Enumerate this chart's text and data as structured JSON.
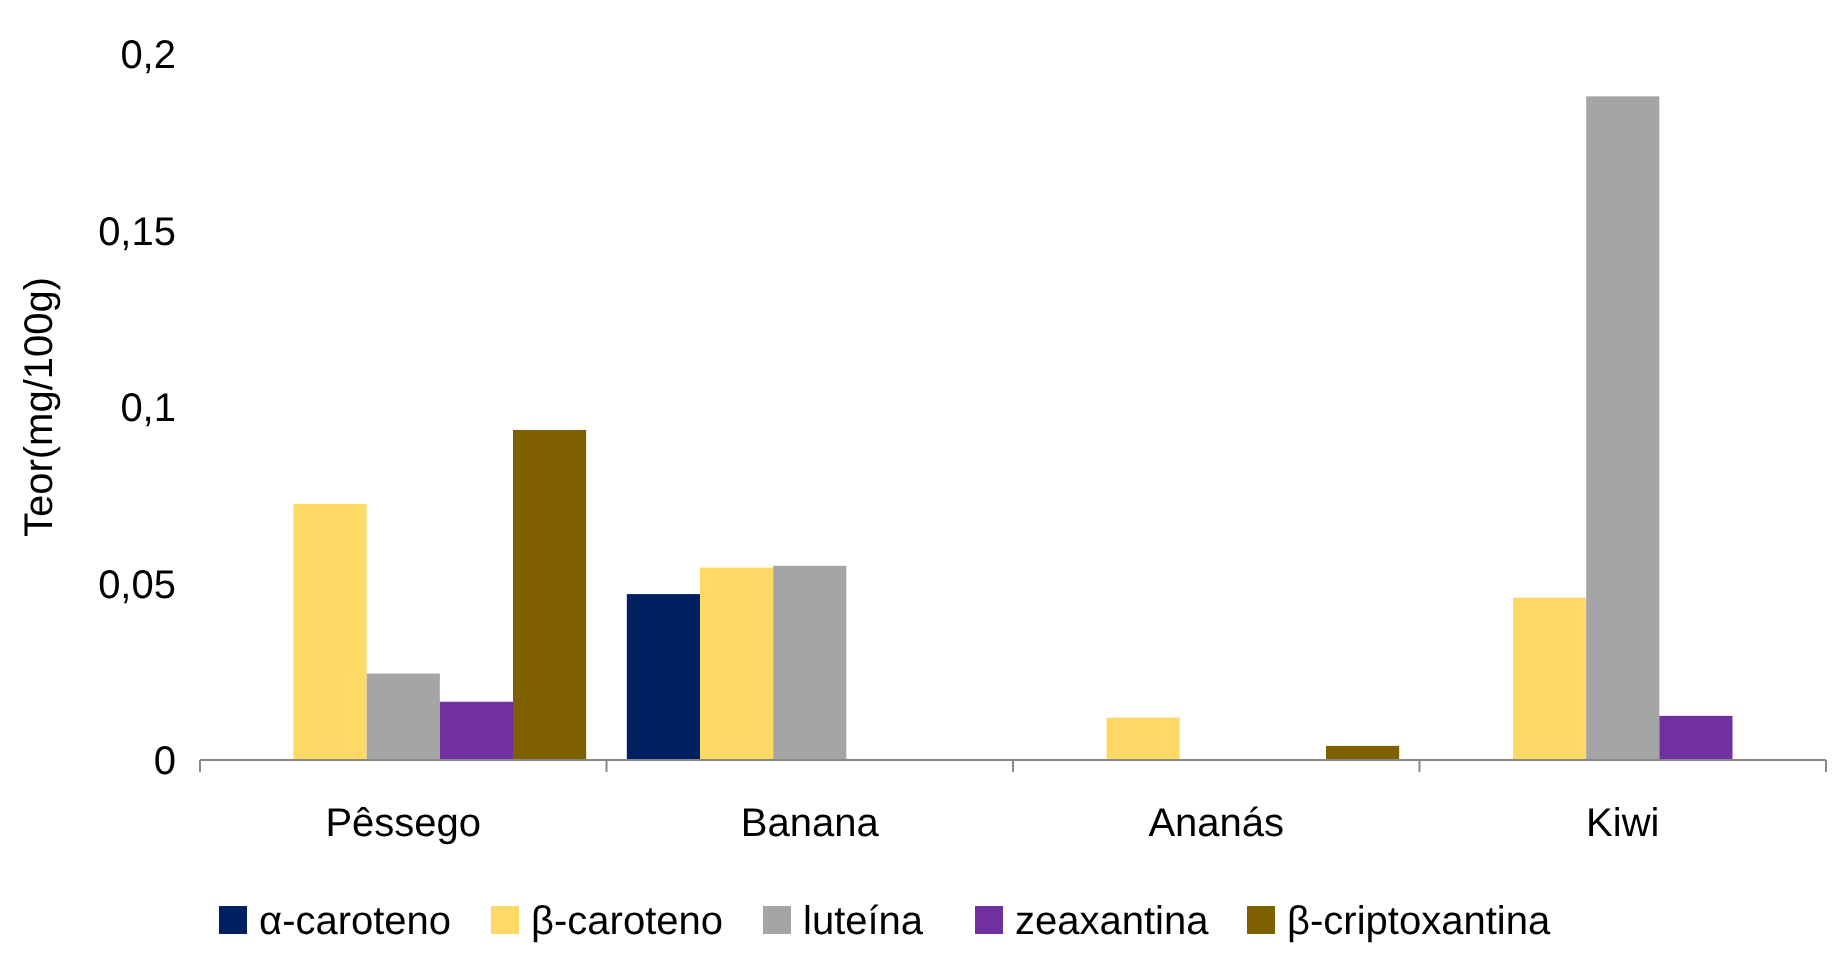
{
  "chart_data": {
    "type": "bar",
    "ylabel": "Teor(mg/100g)",
    "categories": [
      "Pêssego",
      "Banana",
      "Ananás",
      "Kiwi"
    ],
    "series": [
      {
        "name": "α-caroteno",
        "color": "#002060",
        "values": [
          null,
          0.047,
          null,
          null
        ]
      },
      {
        "name": "β-caroteno",
        "color": "#ffd966",
        "values": [
          0.0725,
          0.0545,
          0.012,
          0.046
        ]
      },
      {
        "name": "luteína",
        "color": "#a5a5a5",
        "values": [
          0.0245,
          0.055,
          null,
          0.188
        ]
      },
      {
        "name": "zeaxantina",
        "color": "#7030a0",
        "values": [
          0.0165,
          null,
          null,
          0.0125
        ]
      },
      {
        "name": "β-criptoxantina",
        "color": "#7f6000",
        "values": [
          0.0935,
          null,
          0.004,
          null
        ]
      }
    ],
    "ylim": [
      0,
      0.2
    ],
    "yticks": [
      {
        "value": 0,
        "label": "0"
      },
      {
        "value": 0.05,
        "label": "0,05"
      },
      {
        "value": 0.1,
        "label": "0,1"
      },
      {
        "value": 0.15,
        "label": "0,15"
      },
      {
        "value": 0.2,
        "label": "0,2"
      }
    ],
    "grid": false,
    "legend": "bottom"
  }
}
